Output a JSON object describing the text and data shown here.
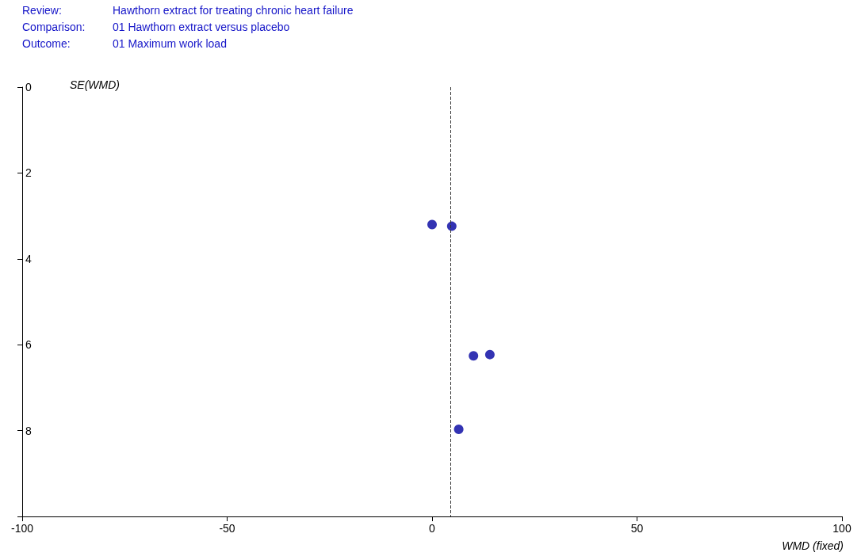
{
  "chart_data": {
    "type": "scatter",
    "annotations": [
      "Review:",
      "Hawthorn extract for treating chronic heart failure",
      "Comparison:",
      "01 Hawthorn extract versus placebo",
      "Outcome:",
      "01 Maximum work load"
    ],
    "xlabel": "WMD (fixed)",
    "ylabel": "SE(WMD)",
    "x": [
      0,
      4.8,
      10.1,
      14.1,
      6.5
    ],
    "values": [
      3.2,
      3.24,
      6.26,
      6.23,
      7.97
    ],
    "color": "#0000a0",
    "marker": "circle",
    "xlim": [
      -100,
      100
    ],
    "xticks": [
      -100,
      -50,
      0,
      50,
      100
    ],
    "ylim": [
      10,
      0
    ],
    "yticks": [
      0,
      2,
      4,
      6,
      8
    ],
    "ref_lines": [
      {
        "axis": "x",
        "value": 4.5,
        "line_style": "dashed",
        "color": "#333333"
      }
    ],
    "grid": false
  }
}
